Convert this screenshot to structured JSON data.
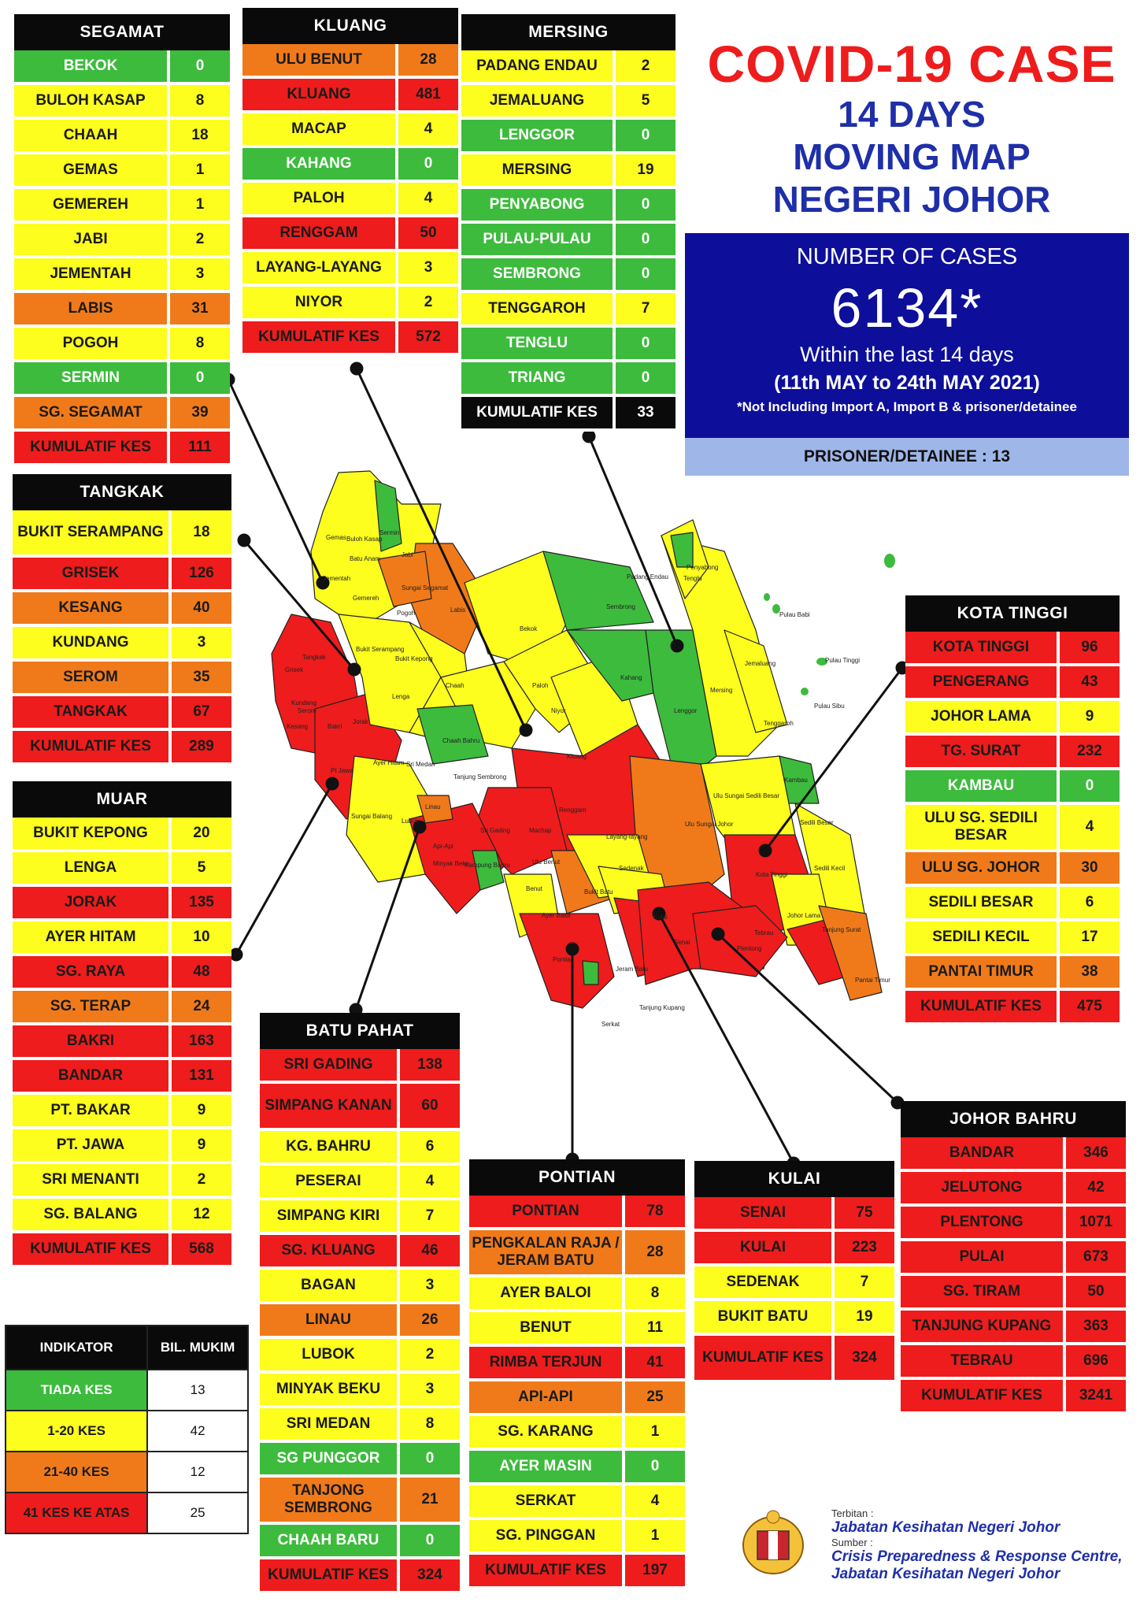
{
  "title": {
    "line1": "COVID-19 CASE",
    "line2": "14 DAYS",
    "line3": "MOVING MAP",
    "line4": "NEGERI JOHOR"
  },
  "summary": {
    "heading": "NUMBER OF CASES",
    "total": "6134*",
    "period_label": "Within the last 14 days",
    "date_range": "(11th MAY to 24th MAY 2021)",
    "note": "*Not Including Import A, Import B & prisoner/detainee",
    "prisoner": "PRISONER/DETAINEE : 13"
  },
  "colors": {
    "green": "#3dbb3d",
    "yellow": "#fdfd1e",
    "orange": "#f07a1a",
    "red": "#ee1c1c",
    "black": "#0a0a0a"
  },
  "districts": {
    "segamat": {
      "name": "SEGAMAT",
      "rows": [
        {
          "label": "BEKOK",
          "value": "0",
          "c": "G"
        },
        {
          "label": "BULOH KASAP",
          "value": "8",
          "c": "Y"
        },
        {
          "label": "CHAAH",
          "value": "18",
          "c": "Y"
        },
        {
          "label": "GEMAS",
          "value": "1",
          "c": "Y"
        },
        {
          "label": "GEMEREH",
          "value": "1",
          "c": "Y"
        },
        {
          "label": "JABI",
          "value": "2",
          "c": "Y"
        },
        {
          "label": "JEMENTAH",
          "value": "3",
          "c": "Y"
        },
        {
          "label": "LABIS",
          "value": "31",
          "c": "O"
        },
        {
          "label": "POGOH",
          "value": "8",
          "c": "Y"
        },
        {
          "label": "SERMIN",
          "value": "0",
          "c": "G"
        },
        {
          "label": "SG. SEGAMAT",
          "value": "39",
          "c": "O"
        },
        {
          "label": "KUMULATIF KES",
          "value": "111",
          "c": "R"
        }
      ]
    },
    "kluang": {
      "name": "KLUANG",
      "rows": [
        {
          "label": "ULU BENUT",
          "value": "28",
          "c": "O"
        },
        {
          "label": "KLUANG",
          "value": "481",
          "c": "R"
        },
        {
          "label": "MACAP",
          "value": "4",
          "c": "Y"
        },
        {
          "label": "KAHANG",
          "value": "0",
          "c": "G"
        },
        {
          "label": "PALOH",
          "value": "4",
          "c": "Y"
        },
        {
          "label": "RENGGAM",
          "value": "50",
          "c": "R"
        },
        {
          "label": "LAYANG-LAYANG",
          "value": "3",
          "c": "Y"
        },
        {
          "label": "NIYOR",
          "value": "2",
          "c": "Y"
        },
        {
          "label": "KUMULATIF KES",
          "value": "572",
          "c": "R"
        }
      ]
    },
    "mersing": {
      "name": "MERSING",
      "rows": [
        {
          "label": "PADANG ENDAU",
          "value": "2",
          "c": "Y"
        },
        {
          "label": "JEMALUANG",
          "value": "5",
          "c": "Y"
        },
        {
          "label": "LENGGOR",
          "value": "0",
          "c": "G"
        },
        {
          "label": "MERSING",
          "value": "19",
          "c": "Y"
        },
        {
          "label": "PENYABONG",
          "value": "0",
          "c": "G"
        },
        {
          "label": "PULAU-PULAU",
          "value": "0",
          "c": "G"
        },
        {
          "label": "SEMBRONG",
          "value": "0",
          "c": "G"
        },
        {
          "label": "TENGGAROH",
          "value": "7",
          "c": "Y"
        },
        {
          "label": "TENGLU",
          "value": "0",
          "c": "G"
        },
        {
          "label": "TRIANG",
          "value": "0",
          "c": "G"
        },
        {
          "label": "KUMULATIF KES",
          "value": "33",
          "c": "K"
        }
      ]
    },
    "tangkak": {
      "name": "TANGKAK",
      "rows": [
        {
          "label": "BUKIT SERAMPANG",
          "value": "18",
          "c": "Y",
          "tall": true
        },
        {
          "label": "GRISEK",
          "value": "126",
          "c": "R"
        },
        {
          "label": "KESANG",
          "value": "40",
          "c": "O"
        },
        {
          "label": "KUNDANG",
          "value": "3",
          "c": "Y"
        },
        {
          "label": "SEROM",
          "value": "35",
          "c": "O"
        },
        {
          "label": "TANGKAK",
          "value": "67",
          "c": "R"
        },
        {
          "label": "KUMULATIF KES",
          "value": "289",
          "c": "R"
        }
      ]
    },
    "muar": {
      "name": "MUAR",
      "rows": [
        {
          "label": "BUKIT KEPONG",
          "value": "20",
          "c": "Y"
        },
        {
          "label": "LENGA",
          "value": "5",
          "c": "Y"
        },
        {
          "label": "JORAK",
          "value": "135",
          "c": "R"
        },
        {
          "label": "AYER HITAM",
          "value": "10",
          "c": "Y"
        },
        {
          "label": "SG. RAYA",
          "value": "48",
          "c": "R"
        },
        {
          "label": "SG. TERAP",
          "value": "24",
          "c": "O"
        },
        {
          "label": "BAKRI",
          "value": "163",
          "c": "R"
        },
        {
          "label": "BANDAR",
          "value": "131",
          "c": "R"
        },
        {
          "label": "PT. BAKAR",
          "value": "9",
          "c": "Y"
        },
        {
          "label": "PT. JAWA",
          "value": "9",
          "c": "Y"
        },
        {
          "label": "SRI MENANTI",
          "value": "2",
          "c": "Y"
        },
        {
          "label": "SG. BALANG",
          "value": "12",
          "c": "Y"
        },
        {
          "label": "KUMULATIF KES",
          "value": "568",
          "c": "R"
        }
      ]
    },
    "kota_tinggi": {
      "name": "KOTA TINGGI",
      "rows": [
        {
          "label": "KOTA TINGGI",
          "value": "96",
          "c": "R"
        },
        {
          "label": "PENGERANG",
          "value": "43",
          "c": "R"
        },
        {
          "label": "JOHOR LAMA",
          "value": "9",
          "c": "Y"
        },
        {
          "label": "TG. SURAT",
          "value": "232",
          "c": "R"
        },
        {
          "label": "KAMBAU",
          "value": "0",
          "c": "G"
        },
        {
          "label": "ULU SG. SEDILI BESAR",
          "value": "4",
          "c": "Y",
          "tall": true
        },
        {
          "label": "ULU  SG. JOHOR",
          "value": "30",
          "c": "O"
        },
        {
          "label": "SEDILI BESAR",
          "value": "6",
          "c": "Y"
        },
        {
          "label": "SEDILI KECIL",
          "value": "17",
          "c": "Y"
        },
        {
          "label": "PANTAI TIMUR",
          "value": "38",
          "c": "O"
        },
        {
          "label": "KUMULATIF KES",
          "value": "475",
          "c": "R"
        }
      ]
    },
    "batu_pahat": {
      "name": "BATU PAHAT",
      "rows": [
        {
          "label": "SRI GADING",
          "value": "138",
          "c": "R"
        },
        {
          "label": "SIMPANG KANAN",
          "value": "60",
          "c": "R",
          "tall": true
        },
        {
          "label": "KG. BAHRU",
          "value": "6",
          "c": "Y"
        },
        {
          "label": "PESERAI",
          "value": "4",
          "c": "Y"
        },
        {
          "label": "SIMPANG KIRI",
          "value": "7",
          "c": "Y"
        },
        {
          "label": "SG. KLUANG",
          "value": "46",
          "c": "R"
        },
        {
          "label": "BAGAN",
          "value": "3",
          "c": "Y"
        },
        {
          "label": "LINAU",
          "value": "26",
          "c": "O"
        },
        {
          "label": "LUBOK",
          "value": "2",
          "c": "Y"
        },
        {
          "label": "MINYAK BEKU",
          "value": "3",
          "c": "Y"
        },
        {
          "label": "SRI MEDAN",
          "value": "8",
          "c": "Y"
        },
        {
          "label": "SG PUNGGOR",
          "value": "0",
          "c": "G"
        },
        {
          "label": "TANJONG SEMBRONG",
          "value": "21",
          "c": "O",
          "tall": true
        },
        {
          "label": "CHAAH BARU",
          "value": "0",
          "c": "G"
        },
        {
          "label": "KUMULATIF KES",
          "value": "324",
          "c": "R"
        }
      ]
    },
    "pontian": {
      "name": "PONTIAN",
      "rows": [
        {
          "label": "PONTIAN",
          "value": "78",
          "c": "R"
        },
        {
          "label": "PENGKALAN RAJA / JERAM BATU",
          "value": "28",
          "c": "O",
          "tall": true
        },
        {
          "label": "AYER BALOI",
          "value": "8",
          "c": "Y"
        },
        {
          "label": "BENUT",
          "value": "11",
          "c": "Y"
        },
        {
          "label": "RIMBA TERJUN",
          "value": "41",
          "c": "R"
        },
        {
          "label": "API-API",
          "value": "25",
          "c": "O"
        },
        {
          "label": "SG. KARANG",
          "value": "1",
          "c": "Y"
        },
        {
          "label": "AYER MASIN",
          "value": "0",
          "c": "G"
        },
        {
          "label": "SERKAT",
          "value": "4",
          "c": "Y"
        },
        {
          "label": "SG. PINGGAN",
          "value": "1",
          "c": "Y"
        },
        {
          "label": "KUMULATIF KES",
          "value": "197",
          "c": "R"
        }
      ]
    },
    "kulai": {
      "name": "KULAI",
      "rows": [
        {
          "label": "SENAI",
          "value": "75",
          "c": "R"
        },
        {
          "label": "KULAI",
          "value": "223",
          "c": "R"
        },
        {
          "label": "SEDENAK",
          "value": "7",
          "c": "Y"
        },
        {
          "label": "BUKIT BATU",
          "value": "19",
          "c": "Y"
        },
        {
          "label": "KUMULATIF KES",
          "value": "324",
          "c": "R",
          "tall": true
        }
      ]
    },
    "johor_bahru": {
      "name": "JOHOR BAHRU",
      "rows": [
        {
          "label": "BANDAR",
          "value": "346",
          "c": "R"
        },
        {
          "label": "JELUTONG",
          "value": "42",
          "c": "R"
        },
        {
          "label": "PLENTONG",
          "value": "1071",
          "c": "R"
        },
        {
          "label": "PULAI",
          "value": "673",
          "c": "R"
        },
        {
          "label": "SG. TIRAM",
          "value": "50",
          "c": "R"
        },
        {
          "label": "TANJUNG KUPANG",
          "value": "363",
          "c": "R"
        },
        {
          "label": "TEBRAU",
          "value": "696",
          "c": "R"
        },
        {
          "label": "KUMULATIF KES",
          "value": "3241",
          "c": "R"
        }
      ]
    }
  },
  "legend": {
    "col1": "INDIKATOR",
    "col2": "BIL. MUKIM",
    "rows": [
      {
        "label": "TIADA KES",
        "value": "13",
        "c": "G"
      },
      {
        "label": "1-20 KES",
        "value": "42",
        "c": "Y"
      },
      {
        "label": "21-40 KES",
        "value": "12",
        "c": "O"
      },
      {
        "label": "41 KES KE ATAS",
        "value": "25",
        "c": "R"
      }
    ]
  },
  "map_labels": [
    "Gemas",
    "Buloh Kasap",
    "Sermin",
    "Jabi",
    "Batu Anam",
    "Jementah",
    "Gemereh",
    "Sungai Segamat",
    "Pogoh",
    "Labis",
    "Bekok",
    "Bukit Serampang",
    "Bukit Kepong",
    "Tangkak",
    "Lenga",
    "Chaah",
    "Paloh",
    "Niyor",
    "Kahang",
    "Lenggor",
    "Sembrong",
    "Tenglu",
    "Penyabong",
    "Padang Endau",
    "Mersing",
    "Jemaluang",
    "Tenggaroh",
    "Pulau Babi",
    "Pulau Tinggi",
    "Pulau Sibu",
    "Chaah Bahru",
    "Sri Medan",
    "Ayer Hitam",
    "Tanjung Sembrong",
    "Kluang",
    "Renggam",
    "Ulu Sungai Sedili Besar",
    "Ulu Sungai Johor",
    "Kambau",
    "Sedili Besar",
    "Sedili Kecil",
    "Kota Tinggi",
    "Johor Lama",
    "Tanjung Surat",
    "Pantai Timur",
    "Layang-layang",
    "Sedenak",
    "Ulu Benut",
    "Machap",
    "Sri Gading",
    "Minyak Beku",
    "Kampung Bahru",
    "Benut",
    "Ayer Baloi",
    "Bukit Batu",
    "Kulai",
    "Senai",
    "Tebrau",
    "Plentong",
    "Pontian",
    "Jeram Batu",
    "Serkat",
    "Tanjung Kupang",
    "Kesang",
    "Grisek",
    "Serom",
    "Kundang",
    "Bakri",
    "Jorak",
    "Pt Jawa",
    "Sungai Balang",
    "Linau",
    "Lubok",
    "Api-Api"
  ],
  "credit": {
    "terbitan_label": "Terbitan :",
    "publisher": "Jabatan Kesihatan Negeri Johor",
    "sumber_label": "Sumber :",
    "source1": "Crisis Preparedness & Response Centre,",
    "source2": "Jabatan Kesihatan Negeri Johor"
  }
}
